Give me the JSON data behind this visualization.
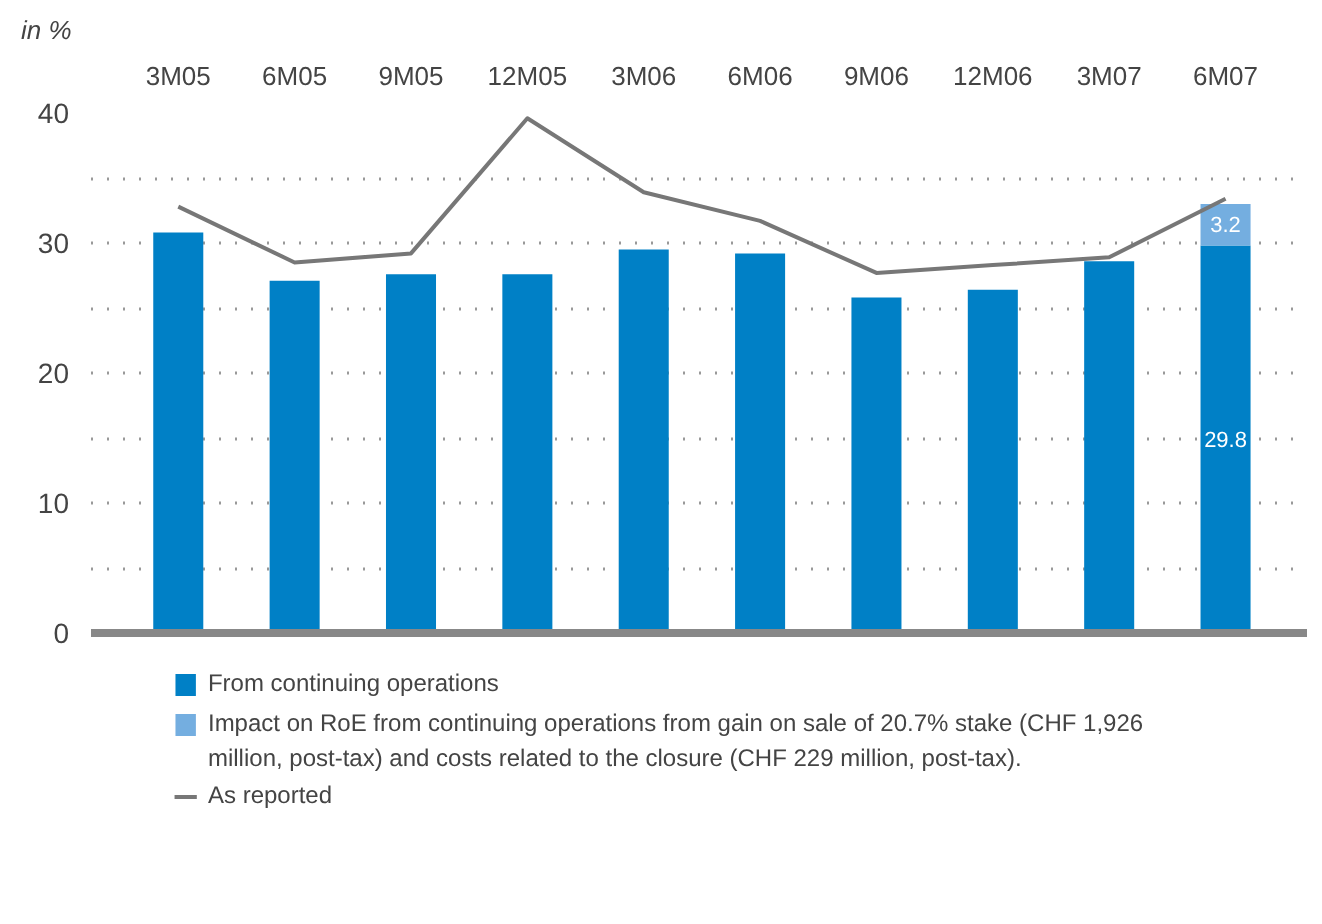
{
  "chart_data": {
    "type": "bar",
    "stacked": true,
    "ylabel": "in %",
    "categories": [
      "3M05",
      "6M05",
      "9M05",
      "12M05",
      "3M06",
      "6M06",
      "9M06",
      "12M06",
      "3M07",
      "6M07"
    ],
    "series": [
      {
        "name": "From continuing operations",
        "color": "#0080c6",
        "values": [
          30.8,
          27.1,
          27.6,
          27.6,
          29.5,
          29.2,
          25.8,
          26.4,
          28.6,
          29.8
        ],
        "value_labels": [
          null,
          null,
          null,
          null,
          null,
          null,
          null,
          null,
          null,
          "29.8"
        ]
      },
      {
        "name": "Impact on RoE from continuing operations from gain on sale of 20.7% stake (CHF 1,926 million, post-tax) and costs related to the closure (CHF 229 million, post-tax).",
        "color": "#74aee0",
        "values": [
          null,
          null,
          null,
          null,
          null,
          null,
          null,
          null,
          null,
          3.2
        ],
        "value_labels": [
          null,
          null,
          null,
          null,
          null,
          null,
          null,
          null,
          null,
          "3.2"
        ]
      },
      {
        "name": "As reported",
        "type": "line",
        "color": "#777777",
        "values": [
          32.8,
          28.5,
          29.2,
          39.6,
          33.9,
          31.7,
          27.7,
          28.3,
          28.9,
          33.4
        ]
      }
    ],
    "ylim": [
      0,
      40
    ],
    "yticks": [
      0,
      {
        "value": 5,
        "label": null
      },
      10,
      {
        "value": 15,
        "label": null
      },
      20,
      {
        "value": 25,
        "label": null
      },
      30,
      {
        "value": 35,
        "label": null
      },
      40
    ],
    "grid": "y",
    "legend": "bottom",
    "line_style": "solid",
    "marker": "none"
  }
}
